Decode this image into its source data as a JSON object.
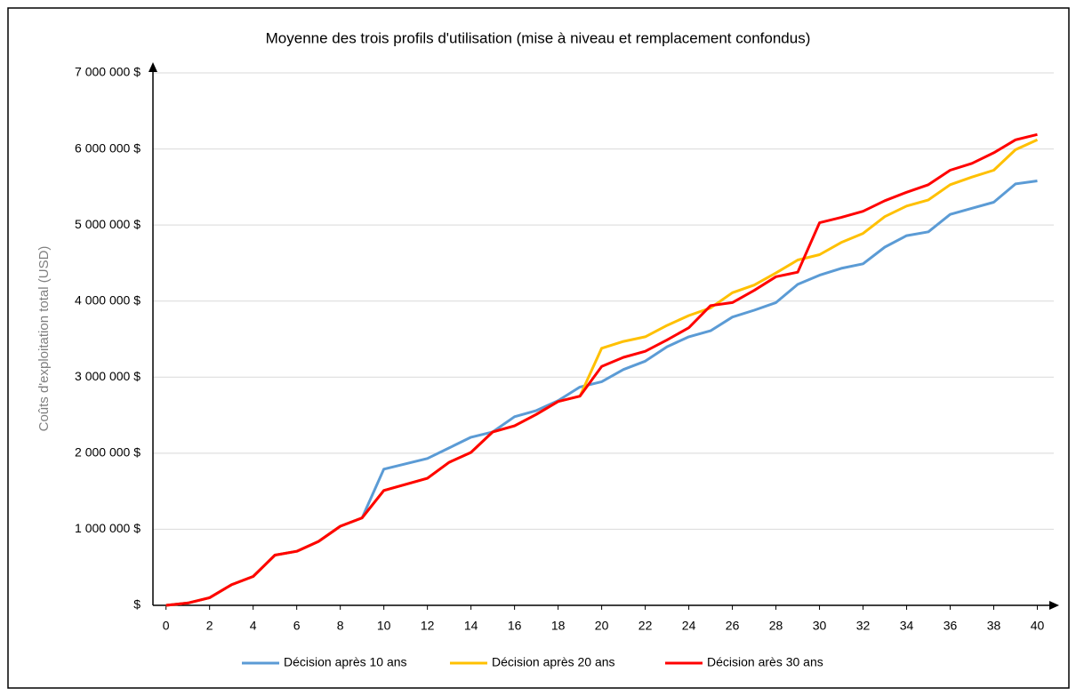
{
  "chart_data": {
    "type": "line",
    "title": "Moyenne des trois profils d'utilisation (mise à niveau et remplacement confondus)",
    "y_label": "Coûts d'exploitation total (USD)",
    "x": [
      0,
      1,
      2,
      3,
      4,
      5,
      6,
      7,
      8,
      9,
      10,
      11,
      12,
      13,
      14,
      15,
      16,
      17,
      18,
      19,
      20,
      21,
      22,
      23,
      24,
      25,
      26,
      27,
      28,
      29,
      30,
      31,
      32,
      33,
      34,
      35,
      36,
      37,
      38,
      39,
      40
    ],
    "series": [
      {
        "name": "Décision après 10 ans",
        "color": "#5b9bd5",
        "values": [
          0,
          30000,
          100000,
          270000,
          380000,
          660000,
          710000,
          840000,
          1040000,
          1150000,
          1790000,
          1860000,
          1930000,
          2070000,
          2210000,
          2280000,
          2480000,
          2560000,
          2690000,
          2870000,
          2940000,
          3100000,
          3210000,
          3400000,
          3530000,
          3610000,
          3790000,
          3880000,
          3980000,
          4220000,
          4340000,
          4430000,
          4490000,
          4710000,
          4860000,
          4910000,
          5140000,
          5220000,
          5300000,
          5540000,
          5580000
        ]
      },
      {
        "name": "Décision après 20 ans",
        "color": "#ffc000",
        "values": [
          0,
          30000,
          100000,
          270000,
          380000,
          660000,
          710000,
          840000,
          1040000,
          1150000,
          1510000,
          1590000,
          1670000,
          1880000,
          2010000,
          2280000,
          2360000,
          2510000,
          2680000,
          2750000,
          3380000,
          3470000,
          3530000,
          3680000,
          3810000,
          3910000,
          4110000,
          4210000,
          4370000,
          4540000,
          4610000,
          4770000,
          4890000,
          5110000,
          5250000,
          5330000,
          5530000,
          5630000,
          5720000,
          5990000,
          6120000
        ]
      },
      {
        "name": "Décision arès 30 ans",
        "color": "#ff0000",
        "values": [
          0,
          30000,
          100000,
          270000,
          380000,
          660000,
          710000,
          840000,
          1040000,
          1150000,
          1510000,
          1590000,
          1670000,
          1880000,
          2010000,
          2280000,
          2360000,
          2510000,
          2680000,
          2750000,
          3140000,
          3260000,
          3340000,
          3490000,
          3650000,
          3940000,
          3980000,
          4140000,
          4320000,
          4380000,
          5030000,
          5100000,
          5180000,
          5320000,
          5430000,
          5530000,
          5720000,
          5810000,
          5950000,
          6120000,
          6190000
        ]
      }
    ],
    "xlim": [
      -0.6,
      41
    ],
    "xticks": [
      0,
      2,
      4,
      6,
      8,
      10,
      12,
      14,
      16,
      18,
      20,
      22,
      24,
      26,
      28,
      30,
      32,
      34,
      36,
      38,
      40
    ],
    "ylim": [
      0,
      7000000
    ],
    "yticks": [
      {
        "value": 0,
        "label": "$"
      },
      {
        "value": 1000000,
        "label": "1 000 000 $"
      },
      {
        "value": 2000000,
        "label": "2 000 000 $"
      },
      {
        "value": 3000000,
        "label": "3 000 000 $"
      },
      {
        "value": 4000000,
        "label": "4 000 000 $"
      },
      {
        "value": 5000000,
        "label": "5 000 000 $"
      },
      {
        "value": 6000000,
        "label": "6 000 000 $"
      },
      {
        "value": 7000000,
        "label": "7 000 000 $"
      }
    ],
    "grid": true,
    "legend": "bottom"
  }
}
